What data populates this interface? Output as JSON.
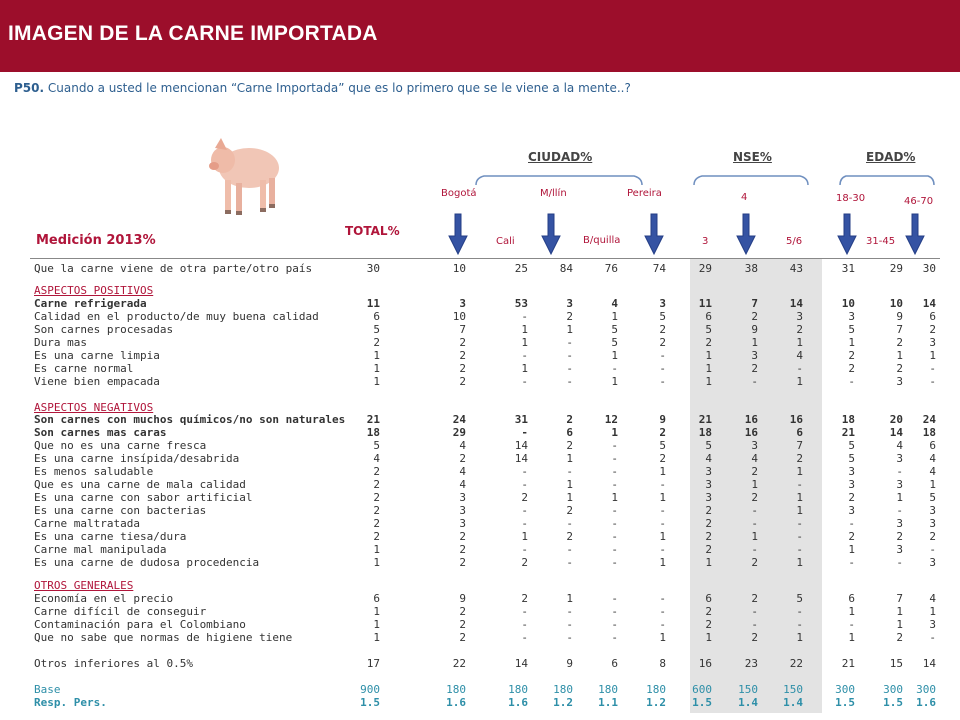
{
  "title": "IMAGEN DE LA CARNE IMPORTADA",
  "question": {
    "code": "P50.",
    "text": "Cuando a usted le mencionan “Carne Importada”  que es lo primero que se le viene a la mente..?"
  },
  "medicion": "Medición 2013%",
  "total_label": "TOTAL%",
  "groups": {
    "ciudad": "CIUDAD%",
    "nse": "NSE%",
    "edad": "EDAD%"
  },
  "columns": {
    "bogota": "Bogotá",
    "cali": "Cali",
    "mllin": "M/llín",
    "bquilla": "B/quilla",
    "pereira": "Pereira",
    "nse3": "3",
    "nse4": "4",
    "nse56": "5/6",
    "e1830": "18-30",
    "e3145": "31-45",
    "e4670": "46-70"
  },
  "rows": [
    {
      "label": "Que la carne viene de otra parte/otro país",
      "vals": [
        "30",
        "10",
        "25",
        "84",
        "76",
        "74",
        "29",
        "38",
        "43",
        "31",
        "29",
        "30"
      ]
    },
    {
      "label": "ASPECTOS POSITIVOS",
      "section": true
    },
    {
      "label": "Carne refrigerada",
      "bold": true,
      "vals": [
        "11",
        "3",
        "53",
        "3",
        "4",
        "3",
        "11",
        "7",
        "14",
        "10",
        "10",
        "14"
      ]
    },
    {
      "label": "Calidad en el producto/de muy buena calidad",
      "vals": [
        "6",
        "10",
        "-",
        "2",
        "1",
        "5",
        "6",
        "2",
        "3",
        "3",
        "9",
        "6"
      ]
    },
    {
      "label": "Son carnes procesadas",
      "vals": [
        "5",
        "7",
        "1",
        "1",
        "5",
        "2",
        "5",
        "9",
        "2",
        "5",
        "7",
        "2"
      ]
    },
    {
      "label": "Dura mas",
      "vals": [
        "2",
        "2",
        "1",
        "-",
        "5",
        "2",
        "2",
        "1",
        "1",
        "1",
        "2",
        "3"
      ]
    },
    {
      "label": "Es una carne limpia",
      "vals": [
        "1",
        "2",
        "-",
        "-",
        "1",
        "-",
        "1",
        "3",
        "4",
        "2",
        "1",
        "1"
      ]
    },
    {
      "label": "Es carne normal",
      "vals": [
        "1",
        "2",
        "1",
        "-",
        "-",
        "-",
        "1",
        "2",
        "-",
        "2",
        "2",
        "-"
      ]
    },
    {
      "label": "Viene bien empacada",
      "vals": [
        "1",
        "2",
        "-",
        "-",
        "1",
        "-",
        "1",
        "-",
        "1",
        "-",
        "3",
        "-"
      ]
    },
    {
      "label": "ASPECTOS NEGATIVOS",
      "section": true
    },
    {
      "label": "Son carnes con muchos químicos/no son naturales",
      "bold": true,
      "vals": [
        "21",
        "24",
        "31",
        "2",
        "12",
        "9",
        "21",
        "16",
        "16",
        "18",
        "20",
        "24"
      ]
    },
    {
      "label": "Son carnes mas caras",
      "bold": true,
      "vals": [
        "18",
        "29",
        "-",
        "6",
        "1",
        "2",
        "18",
        "16",
        "6",
        "21",
        "14",
        "18"
      ]
    },
    {
      "label": "Que no es una carne fresca",
      "vals": [
        "5",
        "4",
        "14",
        "2",
        "-",
        "5",
        "5",
        "3",
        "7",
        "5",
        "4",
        "6"
      ]
    },
    {
      "label": "Es una carne insípida/desabrida",
      "vals": [
        "4",
        "2",
        "14",
        "1",
        "-",
        "2",
        "4",
        "4",
        "2",
        "5",
        "3",
        "4"
      ]
    },
    {
      "label": "Es menos saludable",
      "vals": [
        "2",
        "4",
        "-",
        "-",
        "-",
        "1",
        "3",
        "2",
        "1",
        "3",
        "-",
        "4"
      ]
    },
    {
      "label": "Que es una carne de mala calidad",
      "vals": [
        "2",
        "4",
        "-",
        "1",
        "-",
        "-",
        "3",
        "1",
        "-",
        "3",
        "3",
        "1"
      ]
    },
    {
      "label": "Es una carne con sabor artificial",
      "vals": [
        "2",
        "3",
        "2",
        "1",
        "1",
        "1",
        "3",
        "2",
        "1",
        "2",
        "1",
        "5"
      ]
    },
    {
      "label": "Es una carne con bacterias",
      "vals": [
        "2",
        "3",
        "-",
        "2",
        "-",
        "-",
        "2",
        "-",
        "1",
        "3",
        "-",
        "3"
      ]
    },
    {
      "label": "Carne maltratada",
      "vals": [
        "2",
        "3",
        "-",
        "-",
        "-",
        "-",
        "2",
        "-",
        "-",
        "-",
        "3",
        "3"
      ]
    },
    {
      "label": "Es una carne tiesa/dura",
      "vals": [
        "2",
        "2",
        "1",
        "2",
        "-",
        "1",
        "2",
        "1",
        "-",
        "2",
        "2",
        "2"
      ]
    },
    {
      "label": "Carne mal manipulada",
      "vals": [
        "1",
        "2",
        "-",
        "-",
        "-",
        "-",
        "2",
        "-",
        "-",
        "1",
        "3",
        "-"
      ]
    },
    {
      "label": "Es una carne de dudosa procedencia",
      "vals": [
        "1",
        "2",
        "2",
        "-",
        "-",
        "1",
        "1",
        "2",
        "1",
        "-",
        "-",
        "3"
      ]
    },
    {
      "label": "OTROS GENERALES",
      "section": true
    },
    {
      "label": "Economía en el precio",
      "vals": [
        "6",
        "9",
        "2",
        "1",
        "-",
        "-",
        "6",
        "2",
        "5",
        "6",
        "7",
        "4"
      ]
    },
    {
      "label": "Carne difícil de conseguir",
      "vals": [
        "1",
        "2",
        "-",
        "-",
        "-",
        "-",
        "2",
        "-",
        "-",
        "1",
        "1",
        "1"
      ]
    },
    {
      "label": "Contaminación para el Colombiano",
      "vals": [
        "1",
        "2",
        "-",
        "-",
        "-",
        "-",
        "2",
        "-",
        "-",
        "-",
        "1",
        "3"
      ]
    },
    {
      "label": "Que no sabe que normas de higiene tiene",
      "vals": [
        "1",
        "2",
        "-",
        "-",
        "-",
        "1",
        "1",
        "2",
        "1",
        "1",
        "2",
        "-"
      ]
    },
    {
      "label": "Otros inferiores al 0.5%",
      "vals": [
        "17",
        "22",
        "14",
        "9",
        "6",
        "8",
        "16",
        "23",
        "22",
        "21",
        "15",
        "14"
      ]
    },
    {
      "label": "Base",
      "blue": true,
      "vals": [
        "900",
        "180",
        "180",
        "180",
        "180",
        "180",
        "600",
        "150",
        "150",
        "300",
        "300",
        "300"
      ]
    },
    {
      "label": "Resp. Pers.",
      "blue": true,
      "bold": true,
      "vals": [
        "1.5",
        "1.6",
        "1.6",
        "1.2",
        "1.1",
        "1.2",
        "1.5",
        "1.4",
        "1.4",
        "1.5",
        "1.5",
        "1.6"
      ]
    }
  ],
  "colors": {
    "header": "#9c0e2b",
    "accent": "#b0153a",
    "blue": "#2e8fa8",
    "arrow": "#3553a3"
  }
}
